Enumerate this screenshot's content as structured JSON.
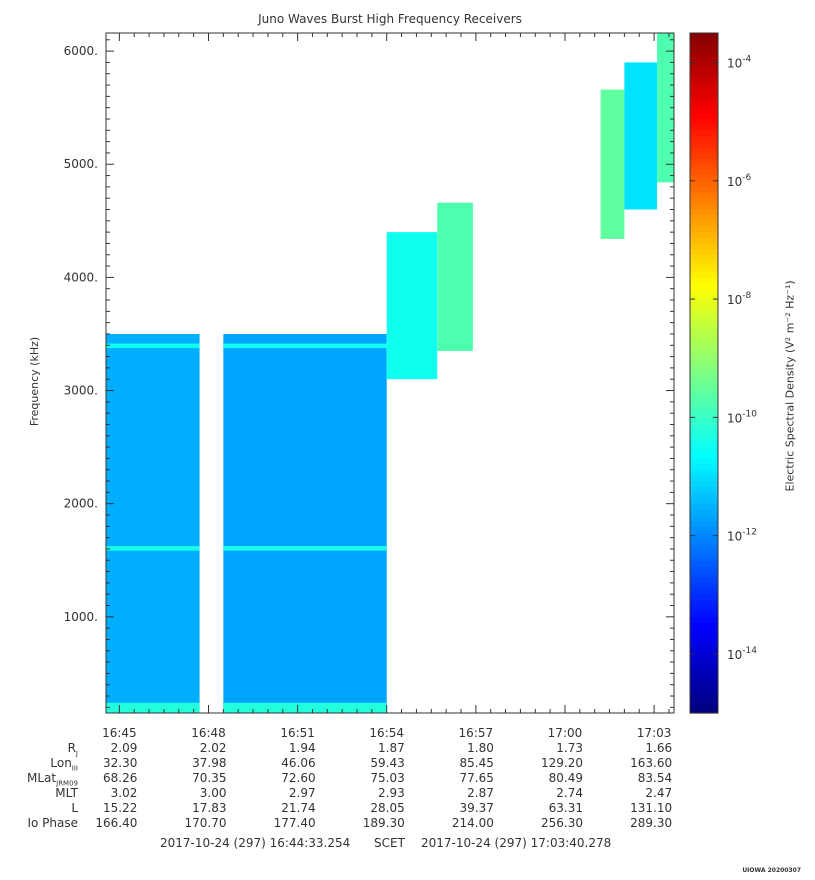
{
  "chart_data": {
    "type": "heatmap",
    "title": "Juno Waves Burst High Frequency Receivers",
    "ylabel": "Frequency (kHz)",
    "colorbar_label": "Electric Spectral Density (V² m⁻² Hz⁻¹)",
    "ylim": [
      150,
      6160
    ],
    "xlim_minutes": [
      44.55,
      63.67
    ],
    "y_ticks": [
      1000,
      2000,
      3000,
      4000,
      5000,
      6000
    ],
    "y_tick_labels": [
      "1000.",
      "2000.",
      "3000.",
      "4000.",
      "5000.",
      "6000."
    ],
    "x_ticks": [
      45,
      48,
      51,
      54,
      57,
      60,
      63
    ],
    "x_tick_labels": [
      "16:45",
      "16:48",
      "16:51",
      "16:54",
      "16:57",
      "17:00",
      "17:03"
    ],
    "colorbar": {
      "log_range": [
        -15,
        -3.5
      ],
      "ticks": [
        -14,
        -12,
        -10,
        -8,
        -6,
        -4
      ],
      "tick_labels": [
        "10",
        "10",
        "10",
        "10",
        "10",
        "10"
      ],
      "tick_exponents": [
        "-14",
        "-12",
        "-10",
        "-8",
        "-6",
        "-4"
      ]
    },
    "blocks": [
      {
        "t0": 44.55,
        "t1": 47.7,
        "f0": 150,
        "f1": 3500,
        "level": -11.6
      },
      {
        "t0": 48.5,
        "t1": 54.0,
        "f0": 150,
        "f1": 3500,
        "level": -11.7
      },
      {
        "t0": 54.0,
        "t1": 55.7,
        "f0": 3100,
        "f1": 4400,
        "level": -10.5
      },
      {
        "t0": 55.7,
        "t1": 56.9,
        "f0": 3350,
        "f1": 4660,
        "level": -9.8
      },
      {
        "t0": 61.2,
        "t1": 62.0,
        "f0": 4340,
        "f1": 5660,
        "level": -9.6
      },
      {
        "t0": 62.0,
        "t1": 63.1,
        "f0": 4600,
        "f1": 5900,
        "level": -11.0
      },
      {
        "t0": 63.1,
        "t1": 63.67,
        "f0": 4840,
        "f1": 6160,
        "level": -9.8
      }
    ],
    "bands": [
      {
        "t0": 44.55,
        "t1": 47.7,
        "f0": 150,
        "f1": 240,
        "level": -10.3
      },
      {
        "t0": 48.5,
        "t1": 54.0,
        "f0": 150,
        "f1": 240,
        "level": -10.3
      },
      {
        "t0": 44.55,
        "t1": 47.7,
        "f0": 1585,
        "f1": 1625,
        "level": -10.4
      },
      {
        "t0": 48.5,
        "t1": 54.0,
        "f0": 1585,
        "f1": 1625,
        "level": -10.4
      },
      {
        "t0": 44.55,
        "t1": 47.7,
        "f0": 3375,
        "f1": 3415,
        "level": -10.5
      },
      {
        "t0": 48.5,
        "t1": 54.0,
        "f0": 3375,
        "f1": 3415,
        "level": -10.5
      }
    ]
  },
  "ephemeris": {
    "rows": [
      {
        "name": "R",
        "sub": "J",
        "values": [
          "2.09",
          "2.02",
          "1.94",
          "1.87",
          "1.80",
          "1.73",
          "1.66"
        ]
      },
      {
        "name": "Lon",
        "sub": "III",
        "values": [
          "32.30",
          "37.98",
          "46.06",
          "59.43",
          "85.45",
          "129.20",
          "163.60"
        ]
      },
      {
        "name": "MLat",
        "sub": "JRM09",
        "values": [
          "68.26",
          "70.35",
          "72.60",
          "75.03",
          "77.65",
          "80.49",
          "83.54"
        ]
      },
      {
        "name": "MLT",
        "sub": "",
        "values": [
          "3.02",
          "3.00",
          "2.97",
          "2.93",
          "2.87",
          "2.74",
          "2.47"
        ]
      },
      {
        "name": "L",
        "sub": "",
        "values": [
          "15.22",
          "17.83",
          "21.74",
          "28.05",
          "39.37",
          "63.31",
          "131.10"
        ]
      },
      {
        "name": "Io Phase",
        "sub": "",
        "values": [
          "166.40",
          "170.70",
          "177.40",
          "189.30",
          "214.00",
          "256.30",
          "289.30"
        ]
      }
    ]
  },
  "footer": {
    "start": "2017-10-24 (297) 16:44:33.254",
    "scet": "SCET",
    "end": "2017-10-24 (297) 17:03:40.278"
  },
  "stamp": "UIOWA 20200307"
}
